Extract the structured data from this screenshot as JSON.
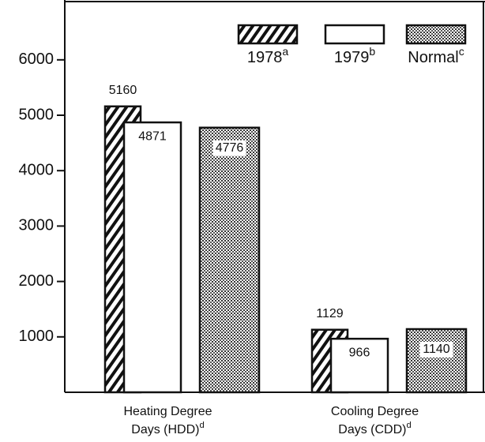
{
  "chart_data": {
    "type": "bar",
    "categories": [
      [
        "Heating Degree",
        "Days (HDD)"
      ],
      [
        "Cooling Degree",
        "Days (CDD)"
      ]
    ],
    "category_notes": [
      "d",
      "d"
    ],
    "series": [
      {
        "name": "1978",
        "note": "a",
        "color": "#111",
        "fill_style": "hatch",
        "values": [
          5160,
          1129
        ]
      },
      {
        "name": "1979",
        "note": "b",
        "color": "#111",
        "fill_style": "white",
        "values": [
          4871,
          966
        ]
      },
      {
        "name": "Normal",
        "note": "c",
        "color": "#111",
        "fill_style": "dots",
        "values": [
          4776,
          1140
        ]
      }
    ],
    "ylim": [
      0,
      7080
    ],
    "yticks": [
      1000,
      2000,
      3000,
      4000,
      5000,
      6000
    ],
    "grid": false,
    "legend": "top-right"
  }
}
